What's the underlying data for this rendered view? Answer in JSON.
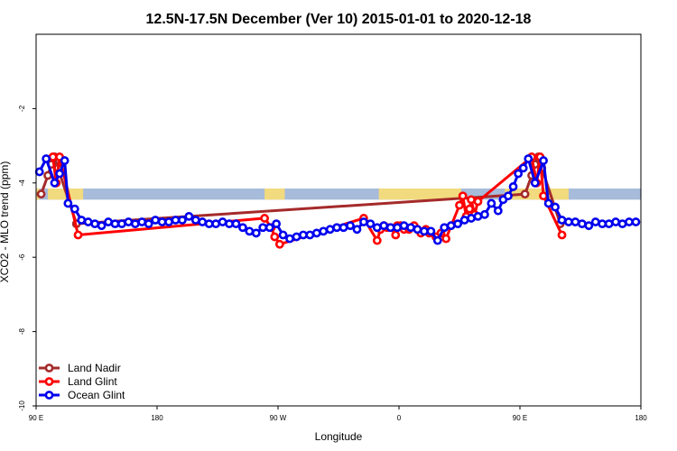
{
  "chart_data": {
    "type": "line",
    "title": "12.5N-17.5N December (Ver 10)   2015-01-01 to 2020-12-18",
    "xlabel": "Longitude",
    "ylabel": "XCO2 - MLO trend (ppm)",
    "xlim": [
      0,
      360
    ],
    "ylim": [
      -10,
      0
    ],
    "x_ticks": [
      {
        "value": 0,
        "label": "90 E"
      },
      {
        "value": 72,
        "label": "180"
      },
      {
        "value": 144,
        "label": "90 W"
      },
      {
        "value": 216,
        "label": "0"
      },
      {
        "value": 288,
        "label": "90 E"
      },
      {
        "value": 360,
        "label": "180"
      }
    ],
    "y_ticks": [
      {
        "value": -2,
        "label": "-2"
      },
      {
        "value": -4,
        "label": "-4"
      },
      {
        "value": -6,
        "label": "-6"
      },
      {
        "value": -8,
        "label": "-8"
      },
      {
        "value": -10,
        "label": "-10"
      }
    ],
    "grid": false,
    "legend_position": "bottom-left",
    "background_map": {
      "y_range": [
        -4.45,
        -4.15
      ],
      "ocean_color": "#a7bbdb",
      "land_color": "#f2da7e",
      "land_segments": [
        [
          0,
          2
        ],
        [
          7,
          28
        ],
        [
          136,
          148
        ],
        [
          204,
          253
        ],
        [
          279,
          317
        ]
      ]
    },
    "series": [
      {
        "name": "Land Nadir",
        "color": "#a52a2a",
        "x": [
          3,
          7,
          9,
          11,
          13,
          24,
          291,
          295,
          297,
          299,
          301,
          312
        ],
        "y": [
          -4.3,
          -3.8,
          -3.5,
          -3.3,
          -3.6,
          -5.1,
          -4.3,
          -3.8,
          -3.5,
          -3.3,
          -3.6,
          -5.1
        ]
      },
      {
        "name": "Land Glint",
        "color": "#ff0000",
        "x": [
          10,
          12,
          14,
          25,
          136,
          140,
          142,
          145,
          195,
          203,
          205,
          207,
          209,
          211,
          214,
          215,
          217,
          219,
          222,
          225,
          227,
          229,
          232,
          234,
          238,
          241,
          244,
          252,
          254,
          256,
          258,
          259,
          261,
          263,
          295,
          298,
          300,
          302,
          313
        ],
        "y": [
          -3.3,
          -4.0,
          -3.3,
          -5.4,
          -4.95,
          -5.2,
          -5.45,
          -5.65,
          -4.95,
          -5.55,
          -5.25,
          -5.15,
          -5.2,
          -5.2,
          -5.4,
          -5.15,
          -5.15,
          -5.25,
          -5.25,
          -5.15,
          -5.25,
          -5.35,
          -5.25,
          -5.35,
          -5.45,
          -5.35,
          -5.5,
          -4.6,
          -4.35,
          -4.9,
          -4.7,
          -4.45,
          -4.85,
          -4.5,
          -3.3,
          -4.0,
          -3.3,
          -4.35,
          -5.4
        ]
      },
      {
        "name": "Ocean Glint",
        "color": "#0000ee",
        "x": [
          2,
          6,
          11,
          14,
          17,
          19,
          23,
          27,
          31,
          35,
          39,
          43,
          47,
          51,
          55,
          59,
          63,
          67,
          71,
          75,
          79,
          83,
          87,
          91,
          95,
          99,
          103,
          107,
          111,
          115,
          119,
          123,
          127,
          131,
          135,
          139,
          143,
          147,
          151,
          155,
          159,
          163,
          167,
          171,
          175,
          179,
          183,
          187,
          191,
          195,
          199,
          203,
          207,
          211,
          215,
          219,
          223,
          227,
          231,
          235,
          239,
          243,
          247,
          251,
          255,
          259,
          263,
          267,
          271,
          275,
          278,
          281,
          284,
          287,
          290,
          293,
          297,
          302,
          305,
          309,
          313,
          317,
          321,
          325,
          329,
          333,
          337,
          341,
          345,
          349,
          353,
          357
        ],
        "y": [
          -3.7,
          -3.35,
          -4.0,
          -3.75,
          -3.4,
          -4.55,
          -4.7,
          -5.0,
          -5.05,
          -5.1,
          -5.15,
          -5.05,
          -5.1,
          -5.1,
          -5.05,
          -5.1,
          -5.05,
          -5.1,
          -5.0,
          -5.05,
          -5.05,
          -5.0,
          -5.0,
          -4.9,
          -5.0,
          -5.05,
          -5.1,
          -5.1,
          -5.05,
          -5.1,
          -5.1,
          -5.2,
          -5.3,
          -5.35,
          -5.2,
          -5.2,
          -5.1,
          -5.4,
          -5.5,
          -5.45,
          -5.4,
          -5.4,
          -5.35,
          -5.3,
          -5.25,
          -5.2,
          -5.2,
          -5.15,
          -5.25,
          -5.05,
          -5.1,
          -5.2,
          -5.15,
          -5.2,
          -5.2,
          -5.15,
          -5.2,
          -5.25,
          -5.3,
          -5.3,
          -5.55,
          -5.2,
          -5.15,
          -5.1,
          -5.0,
          -4.95,
          -4.9,
          -4.85,
          -4.55,
          -4.75,
          -4.45,
          -4.35,
          -4.1,
          -3.75,
          -3.6,
          -3.35,
          -4.0,
          -3.4,
          -4.55,
          -4.65,
          -5.0,
          -5.05,
          -5.05,
          -5.1,
          -5.15,
          -5.05,
          -5.1,
          -5.1,
          -5.05,
          -5.1,
          -5.05,
          -5.05
        ]
      }
    ]
  }
}
